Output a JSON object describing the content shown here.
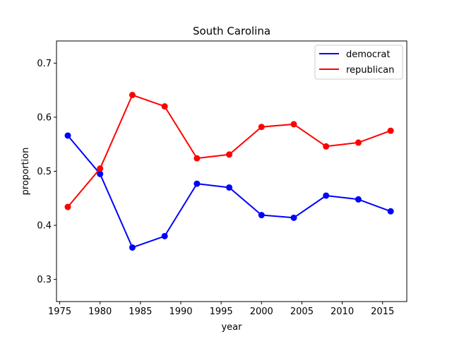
{
  "chart_data": {
    "type": "line",
    "title": "South Carolina",
    "xlabel": "year",
    "ylabel": "proportion",
    "x": [
      1976,
      1980,
      1984,
      1988,
      1992,
      1996,
      2000,
      2004,
      2008,
      2012,
      2016
    ],
    "xlim": [
      1974.6,
      2018.0
    ],
    "ylim": [
      0.259,
      0.741
    ],
    "xticks": [
      1975,
      1980,
      1985,
      1990,
      1995,
      2000,
      2005,
      2010,
      2015
    ],
    "yticks": [
      0.3,
      0.4,
      0.5,
      0.6,
      0.7
    ],
    "ytick_labels": [
      "0.3",
      "0.4",
      "0.5",
      "0.6",
      "0.7"
    ],
    "grid": false,
    "legend_position": "top-right",
    "series": [
      {
        "name": "democrat",
        "color": "#0000ff",
        "values": [
          0.566,
          0.495,
          0.359,
          0.38,
          0.477,
          0.47,
          0.419,
          0.414,
          0.455,
          0.448,
          0.426
        ]
      },
      {
        "name": "republican",
        "color": "#ff0000",
        "values": [
          0.434,
          0.505,
          0.641,
          0.62,
          0.524,
          0.531,
          0.582,
          0.587,
          0.546,
          0.553,
          0.575
        ]
      }
    ]
  }
}
